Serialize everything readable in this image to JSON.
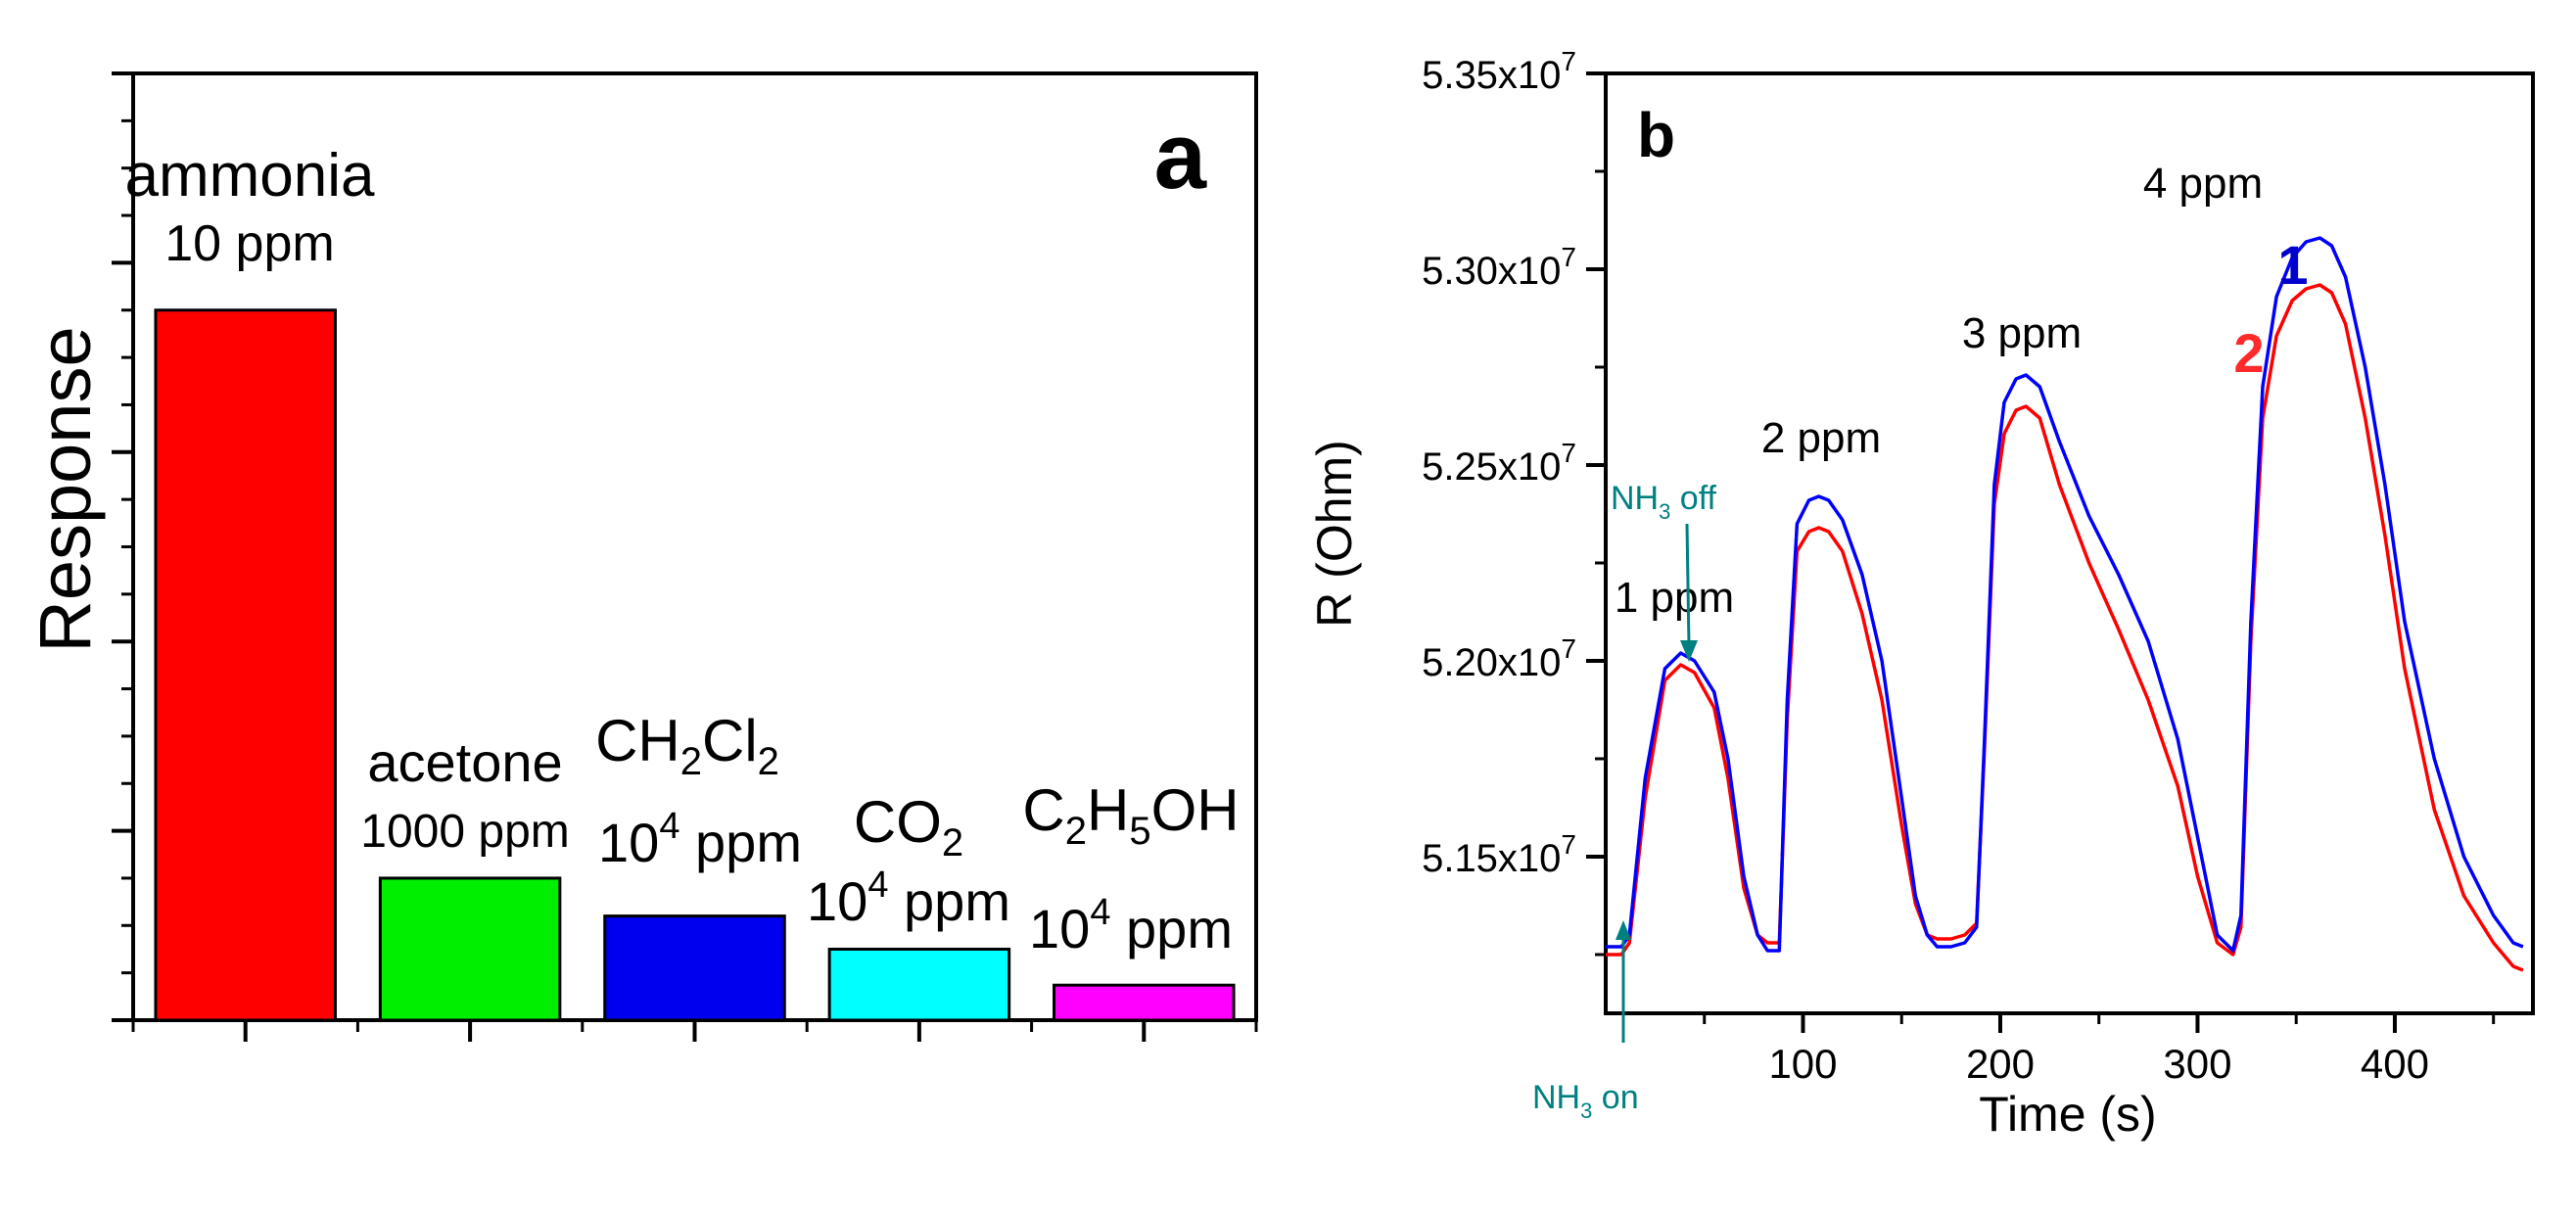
{
  "chart_data": [
    {
      "type": "bar",
      "panel_label": "a",
      "ylabel": "Response",
      "y_tick_labels_shown": false,
      "ylim": [
        0,
        10
      ],
      "categories": [
        {
          "name": "ammonia",
          "conc": "10 ppm",
          "value": 7.5,
          "color": "#ff0000"
        },
        {
          "name": "acetone",
          "conc": "1000 ppm",
          "value": 1.5,
          "color": "#00ee00"
        },
        {
          "name": "CH2Cl2",
          "conc": "10^4 ppm",
          "value": 1.1,
          "color": "#0000ee"
        },
        {
          "name": "CO2",
          "conc": "10^4 ppm",
          "value": 0.75,
          "color": "#00ffff"
        },
        {
          "name": "C2H5OH",
          "conc": "10^4 ppm",
          "value": 0.37,
          "color": "#ff00ff"
        }
      ]
    },
    {
      "type": "line",
      "panel_label": "b",
      "title": "",
      "xlabel": "Time (s)",
      "ylabel": "R (Ohm)",
      "xlim": [
        0,
        470
      ],
      "ylim": [
        51100000.0,
        53500000.0
      ],
      "x_ticks": [
        100,
        200,
        300,
        400
      ],
      "y_ticks": [
        {
          "value": 51500000.0,
          "mantissa": "5.15x10",
          "exp": "7"
        },
        {
          "value": 52000000.0,
          "mantissa": "5.20x10",
          "exp": "7"
        },
        {
          "value": 52500000.0,
          "mantissa": "5.25x10",
          "exp": "7"
        },
        {
          "value": 53000000.0,
          "mantissa": "5.30x10",
          "exp": "7"
        },
        {
          "value": 53500000.0,
          "mantissa": "5.35x10",
          "exp": "7"
        }
      ],
      "series": [
        {
          "name": "1",
          "color": "#0000ff",
          "x": [
            0,
            8,
            12,
            20,
            30,
            38,
            45,
            55,
            62,
            70,
            77,
            82,
            88,
            92,
            97,
            103,
            108,
            113,
            120,
            130,
            140,
            150,
            157,
            163,
            168,
            175,
            182,
            188,
            192,
            197,
            202,
            208,
            213,
            220,
            230,
            245,
            260,
            275,
            290,
            300,
            310,
            318,
            322,
            327,
            333,
            340,
            348,
            355,
            362,
            368,
            375,
            385,
            395,
            405,
            420,
            435,
            450,
            460,
            465
          ],
          "y": [
            51270000.0,
            51270000.0,
            51300000.0,
            51700000.0,
            51980000.0,
            52020000.0,
            52000000.0,
            51920000.0,
            51750000.0,
            51450000.0,
            51300000.0,
            51260000.0,
            51260000.0,
            51900000.0,
            52350000.0,
            52410000.0,
            52420000.0,
            52410000.0,
            52360000.0,
            52220000.0,
            52000000.0,
            51650000.0,
            51400000.0,
            51300000.0,
            51270000.0,
            51270000.0,
            51280000.0,
            51320000.0,
            51800000.0,
            52450000.0,
            52660000.0,
            52720000.0,
            52730000.0,
            52700000.0,
            52560000.0,
            52370000.0,
            52220000.0,
            52050000.0,
            51800000.0,
            51550000.0,
            51300000.0,
            51260000.0,
            51350000.0,
            52100000.0,
            52700000.0,
            52930000.0,
            53030000.0,
            53070000.0,
            53080000.0,
            53060000.0,
            52980000.0,
            52750000.0,
            52450000.0,
            52100000.0,
            51750000.0,
            51500000.0,
            51350000.0,
            51280000.0,
            51270000.0
          ]
        },
        {
          "name": "2",
          "color": "#ff0000",
          "x": [
            0,
            8,
            12,
            20,
            30,
            38,
            45,
            55,
            62,
            70,
            77,
            82,
            88,
            92,
            97,
            103,
            108,
            113,
            120,
            130,
            140,
            150,
            157,
            163,
            168,
            175,
            182,
            188,
            192,
            197,
            202,
            208,
            213,
            220,
            230,
            245,
            260,
            275,
            290,
            300,
            310,
            318,
            322,
            327,
            333,
            340,
            348,
            355,
            362,
            368,
            375,
            385,
            395,
            405,
            420,
            435,
            450,
            460,
            465
          ],
          "y": [
            51250000.0,
            51250000.0,
            51280000.0,
            51650000.0,
            51950000.0,
            51990000.0,
            51970000.0,
            51880000.0,
            51700000.0,
            51420000.0,
            51300000.0,
            51280000.0,
            51280000.0,
            51850000.0,
            52280000.0,
            52330000.0,
            52340000.0,
            52330000.0,
            52280000.0,
            52120000.0,
            51900000.0,
            51580000.0,
            51380000.0,
            51300000.0,
            51290000.0,
            51290000.0,
            51300000.0,
            51330000.0,
            51780000.0,
            52400000.0,
            52580000.0,
            52640000.0,
            52650000.0,
            52620000.0,
            52450000.0,
            52250000.0,
            52080000.0,
            51900000.0,
            51680000.0,
            51450000.0,
            51280000.0,
            51250000.0,
            51320000.0,
            52050000.0,
            52620000.0,
            52830000.0,
            52920000.0,
            52950000.0,
            52960000.0,
            52940000.0,
            52860000.0,
            52620000.0,
            52320000.0,
            51980000.0,
            51620000.0,
            51400000.0,
            51280000.0,
            51220000.0,
            51210000.0
          ]
        }
      ],
      "annotations": {
        "peaks": [
          "1 ppm",
          "2 ppm",
          "3 ppm",
          "4 ppm"
        ],
        "nh3_off_main": "NH",
        "nh3_off_sub": "3",
        "nh3_off_tail": " off",
        "nh3_on_main": "NH",
        "nh3_on_sub": "3",
        "nh3_on_tail": " on"
      }
    }
  ]
}
